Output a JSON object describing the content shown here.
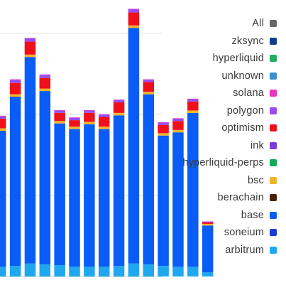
{
  "chart_data": {
    "type": "bar",
    "stacked": true,
    "grid": true,
    "legend_position": "right",
    "title": "",
    "xlabel": "",
    "ylabel": "",
    "ylim": [
      0,
      33
    ],
    "categories": [
      "",
      "",
      "",
      "",
      "",
      "",
      "",
      "",
      "",
      "",
      "",
      "",
      "",
      "",
      ""
    ],
    "series": [
      {
        "name": "arbitrum",
        "color": "#1fa8f0",
        "values": [
          1.2,
          1.3,
          1.6,
          1.5,
          1.4,
          1.2,
          1.2,
          1.2,
          1.3,
          1.6,
          1.5,
          1.3,
          1.2,
          1.2,
          0.5
        ]
      },
      {
        "name": "soneium",
        "color": "#1b3bd6",
        "values": [
          0,
          0,
          0,
          0,
          0,
          0,
          0,
          0,
          0,
          0,
          0,
          0,
          0,
          0,
          0
        ]
      },
      {
        "name": "base",
        "color": "#0a5cf6",
        "values": [
          16.8,
          20.9,
          25.5,
          21.4,
          17.5,
          17.0,
          17.6,
          17.0,
          18.6,
          29.1,
          21.0,
          16.1,
          16.6,
          19.0,
          5.8
        ]
      },
      {
        "name": "berachain",
        "color": "#4a2208",
        "values": [
          0,
          0,
          0,
          0,
          0,
          0,
          0,
          0,
          0,
          0,
          0,
          0,
          0,
          0,
          0
        ]
      },
      {
        "name": "bsc",
        "color": "#f0b429",
        "values": [
          0.3,
          0.3,
          0.3,
          0.3,
          0.3,
          0.3,
          0.3,
          0.3,
          0.3,
          0.3,
          0.3,
          0.3,
          0.3,
          0.3,
          0.2
        ]
      },
      {
        "name": "hyperliquid-perps",
        "color": "#16a85a",
        "values": [
          0,
          0,
          0,
          0,
          0,
          0,
          0,
          0,
          0,
          0,
          0,
          0,
          0,
          0,
          0
        ]
      },
      {
        "name": "ink",
        "color": "#7a3cdb",
        "values": [
          0,
          0,
          0,
          0,
          0,
          0,
          0,
          0,
          0,
          0,
          0,
          0,
          0,
          0,
          0
        ]
      },
      {
        "name": "optimism",
        "color": "#f0101a",
        "values": [
          1.2,
          1.4,
          1.6,
          1.3,
          1.0,
          0.8,
          1.1,
          1.2,
          1.3,
          1.6,
          1.2,
          1.0,
          1.1,
          1.1,
          0.2
        ]
      },
      {
        "name": "polygon",
        "color": "#9b4cf0",
        "values": [
          0.3,
          0.4,
          0.4,
          0.4,
          0.3,
          0.3,
          0.3,
          0.3,
          0.3,
          0.4,
          0.3,
          0.3,
          0.3,
          0.3,
          0.1
        ]
      },
      {
        "name": "solana",
        "color": "#e836c0",
        "values": [
          0.05,
          0.05,
          0.05,
          0.05,
          0.05,
          0.05,
          0.05,
          0.05,
          0.05,
          0.05,
          0.05,
          0.05,
          0.05,
          0.05,
          0.0
        ]
      },
      {
        "name": "unknown",
        "color": "#3a8fd0",
        "values": [
          0,
          0,
          0,
          0,
          0,
          0,
          0,
          0,
          0,
          0,
          0,
          0,
          0,
          0,
          0
        ]
      },
      {
        "name": "hyperliquid",
        "color": "#1fae5e",
        "values": [
          0,
          0,
          0,
          0,
          0,
          0,
          0,
          0,
          0,
          0,
          0,
          0,
          0,
          0,
          0
        ]
      },
      {
        "name": "zksync",
        "color": "#0e3c8c",
        "values": [
          0,
          0,
          0,
          0,
          0,
          0,
          0,
          0,
          0,
          0,
          0,
          0,
          0,
          0,
          0
        ]
      }
    ]
  },
  "legend": {
    "items": [
      {
        "label": "All",
        "color": "#666666",
        "icon": "all-swatch"
      },
      {
        "label": "zksync",
        "color": "#0e3c8c"
      },
      {
        "label": "hyperliquid",
        "color": "#1fae5e"
      },
      {
        "label": "unknown",
        "color": "#3a8fd0"
      },
      {
        "label": "solana",
        "color": "#e836c0"
      },
      {
        "label": "polygon",
        "color": "#9b4cf0"
      },
      {
        "label": "optimism",
        "color": "#f0101a"
      },
      {
        "label": "ink",
        "color": "#7a3cdb"
      },
      {
        "label": "hyperliquid-perps",
        "color": "#16a85a"
      },
      {
        "label": "bsc",
        "color": "#f0b429"
      },
      {
        "label": "berachain",
        "color": "#4a2208"
      },
      {
        "label": "base",
        "color": "#0a5cf6"
      },
      {
        "label": "soneium",
        "color": "#1b3bd6"
      },
      {
        "label": "arbitrum",
        "color": "#1fa8f0"
      }
    ]
  }
}
